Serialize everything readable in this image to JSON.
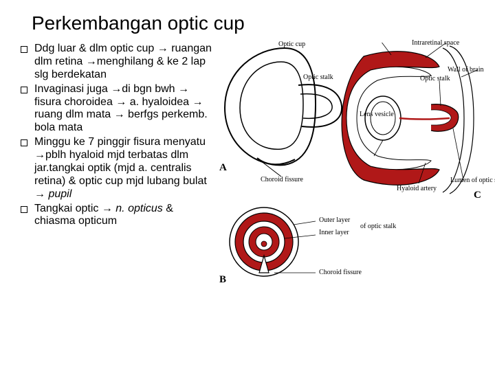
{
  "title": "Perkembangan optic cup",
  "bullets": [
    "Ddg luar & dlm optic cup → ruangan dlm retina →menghilang & ke 2 lap slg berdekatan",
    "Invaginasi juga →di bgn bwh → fisura choroidea → a. hyaloidea → ruang dlm mata → berfgs perkemb. bola mata",
    "Minggu ke 7 pinggir fisura menyatu →pblh hyaloid mjd terbatas dlm jar.tangkai optik (mjd a. centralis retina) & optic cup mjd lubang bulat → <i>pupil</i>",
    "Tangkai optic → <i>n. opticus</i> & chiasma opticum"
  ],
  "diagram": {
    "colors": {
      "outline": "#000000",
      "fill_accent": "#b01818",
      "fill_light": "#ffffff",
      "bg": "#ffffff"
    },
    "labels": {
      "optic_cup": "Optic cup",
      "intraretinal_space": "Intraretinal space",
      "wall_of_brain": "Wall of brain",
      "optic_stalk": "Optic stalk",
      "lens_vesicle": "Lens vesicle",
      "choroid_fissure_a": "Choroid fissure",
      "hyaloid_artery": "Hyaloid artery",
      "lumen_of_optic_stalk": "Lumen of optic stalk",
      "outer_layer": "Outer layer",
      "inner_layer": "Inner layer",
      "of_optic_stalk": "of optic stalk",
      "choroid_fissure_b": "Choroid fissure",
      "panel_a": "A",
      "panel_b": "B",
      "panel_c": "C"
    }
  }
}
